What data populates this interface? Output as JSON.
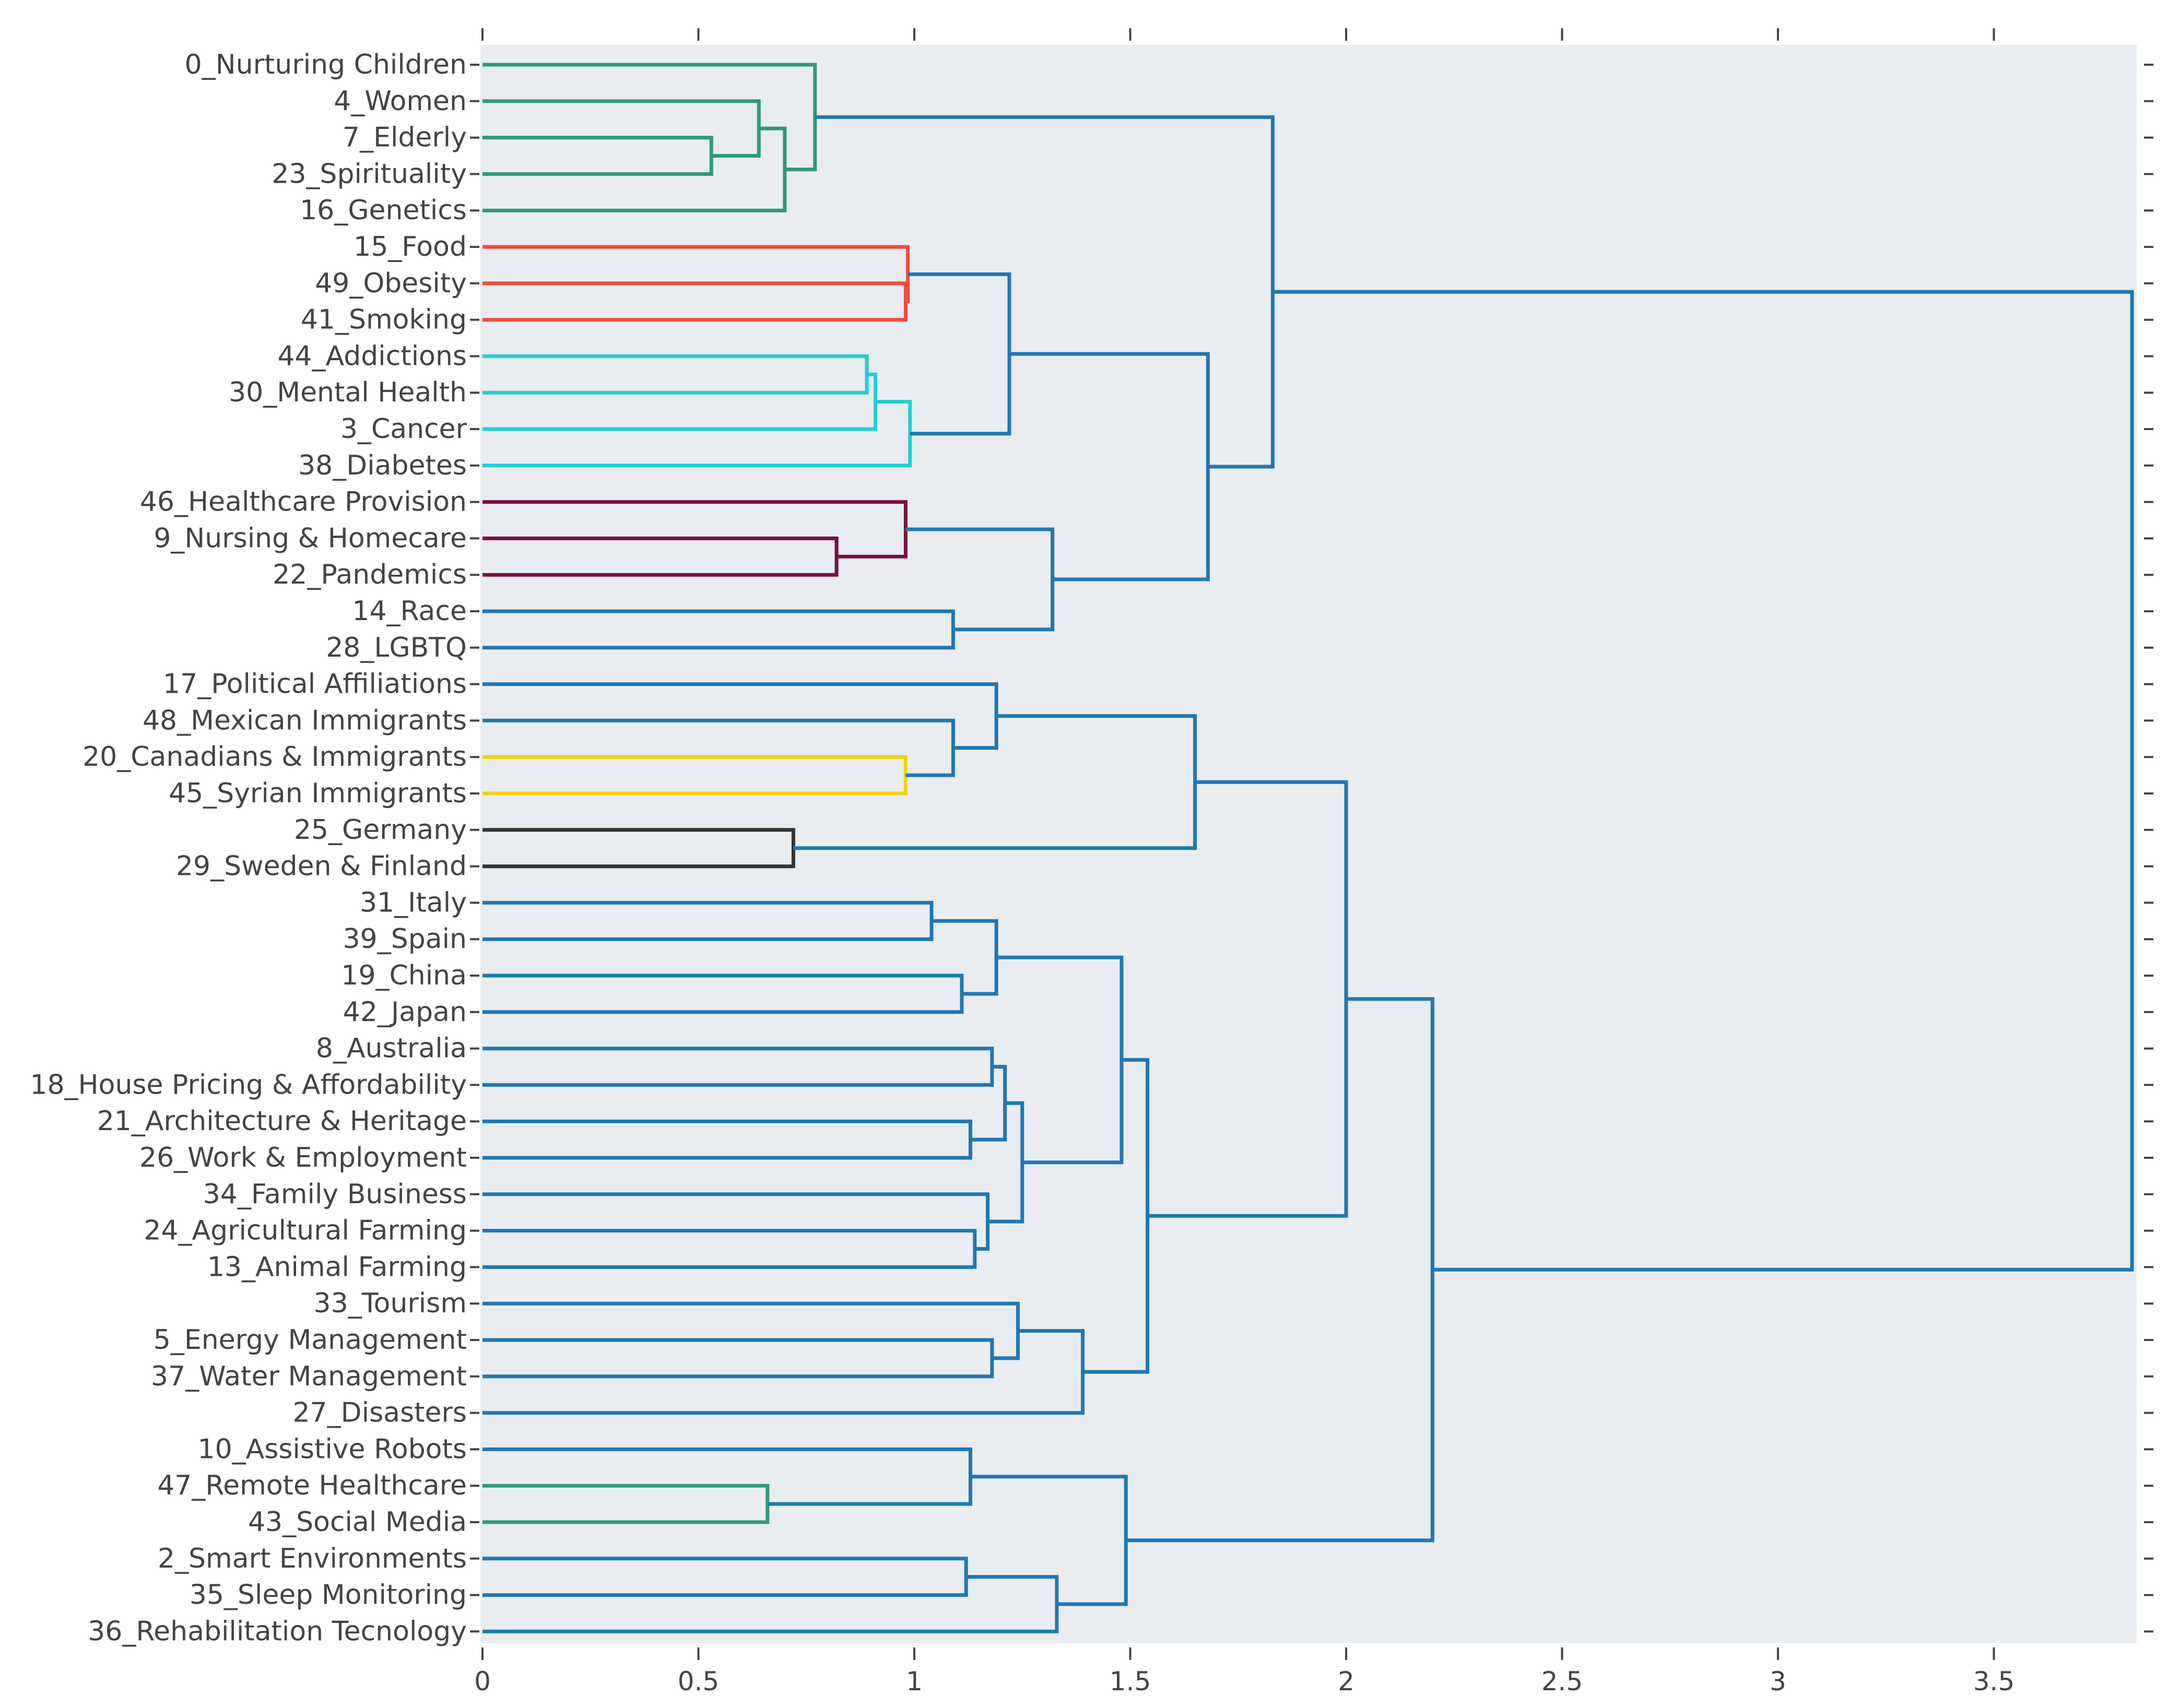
{
  "chart_data": {
    "type": "dendrogram",
    "orientation": "horizontal",
    "title": "",
    "xlabel": "",
    "ylabel": "",
    "xlim": [
      0,
      3.85
    ],
    "x_ticks": [
      0,
      0.5,
      1,
      1.5,
      2,
      2.5,
      3,
      3.5
    ],
    "x_tick_labels": [
      "0",
      "0.5",
      "1",
      "1.5",
      "2",
      "2.5",
      "3",
      "3.5"
    ],
    "plot_background": "#e9edf1",
    "colors": {
      "above_threshold": "#1f77b4",
      "green": "#2e9a78",
      "red": "#f34b3d",
      "cyan": "#21cfd6",
      "maroon": "#7a0f3e",
      "yellow": "#f0d400",
      "dark": "#333333"
    },
    "leaves": [
      "0_Nurturing Children",
      "4_Women",
      "7_Elderly",
      "23_Spirituality",
      "16_Genetics",
      "15_Food",
      "49_Obesity",
      "41_Smoking",
      "44_Addictions",
      "30_Mental Health",
      "3_Cancer",
      "38_Diabetes",
      "46_Healthcare Provision",
      "9_Nursing & Homecare",
      "22_Pandemics",
      "14_Race",
      "28_LGBTQ",
      "17_Political Affiliations",
      "48_Mexican Immigrants",
      "20_Canadians & Immigrants",
      "45_Syrian Immigrants",
      "25_Germany",
      "29_Sweden & Finland",
      "31_Italy",
      "39_Spain",
      "19_China",
      "42_Japan",
      "8_Australia",
      "18_House Pricing & Affordability",
      "21_Architecture & Heritage",
      "26_Work & Employment",
      "34_Family Business",
      "24_Agricultural Farming",
      "13_Animal Farming",
      "33_Tourism",
      "5_Energy Management",
      "37_Water Management",
      "27_Disasters",
      "10_Assistive Robots",
      "47_Remote Healthcare",
      "43_Social Media",
      "2_Smart Environments",
      "35_Sleep Monitoring",
      "36_Rehabilitation Tecnology"
    ],
    "merges": [
      {
        "id": "m1",
        "left": "L2",
        "right": "L3",
        "height": 0.53,
        "color": "green"
      },
      {
        "id": "m2",
        "left": "L1",
        "right": "m1",
        "height": 0.64,
        "color": "green"
      },
      {
        "id": "m3",
        "left": "m2",
        "right": "L4",
        "height": 0.7,
        "color": "green"
      },
      {
        "id": "m4",
        "left": "L0",
        "right": "m3",
        "height": 0.77,
        "color": "green"
      },
      {
        "id": "m5",
        "left": "L6",
        "right": "L7",
        "height": 0.98,
        "color": "red"
      },
      {
        "id": "m6",
        "left": "L5",
        "right": "m5",
        "height": 0.985,
        "color": "red"
      },
      {
        "id": "m7",
        "left": "L8",
        "right": "L9",
        "height": 0.89,
        "color": "cyan"
      },
      {
        "id": "m8",
        "left": "m7",
        "right": "L10",
        "height": 0.91,
        "color": "cyan"
      },
      {
        "id": "m9",
        "left": "m8",
        "right": "L11",
        "height": 0.99,
        "color": "cyan"
      },
      {
        "id": "m10",
        "left": "m6",
        "right": "m9",
        "height": 1.22,
        "color": "above_threshold"
      },
      {
        "id": "m11",
        "left": "L13",
        "right": "L14",
        "height": 0.82,
        "color": "maroon"
      },
      {
        "id": "m12",
        "left": "L12",
        "right": "m11",
        "height": 0.98,
        "color": "maroon"
      },
      {
        "id": "m13",
        "left": "L15",
        "right": "L16",
        "height": 1.09,
        "color": "above_threshold"
      },
      {
        "id": "m14",
        "left": "m12",
        "right": "m13",
        "height": 1.32,
        "color": "above_threshold"
      },
      {
        "id": "m15",
        "left": "m10",
        "right": "m14",
        "height": 1.68,
        "color": "above_threshold"
      },
      {
        "id": "m16",
        "left": "m4",
        "right": "m15",
        "height": 1.83,
        "color": "above_threshold"
      },
      {
        "id": "m17",
        "left": "L19",
        "right": "L20",
        "height": 0.98,
        "color": "yellow"
      },
      {
        "id": "m18",
        "left": "L18",
        "right": "m17",
        "height": 1.09,
        "color": "above_threshold"
      },
      {
        "id": "m19",
        "left": "L17",
        "right": "m18",
        "height": 1.19,
        "color": "above_threshold"
      },
      {
        "id": "m20",
        "left": "L21",
        "right": "L22",
        "height": 0.72,
        "color": "dark"
      },
      {
        "id": "m21",
        "left": "m19",
        "right": "m20",
        "height": 1.65,
        "color": "above_threshold"
      },
      {
        "id": "m22",
        "left": "L23",
        "right": "L24",
        "height": 1.04,
        "color": "above_threshold"
      },
      {
        "id": "m23",
        "left": "L25",
        "right": "L26",
        "height": 1.11,
        "color": "above_threshold"
      },
      {
        "id": "m24",
        "left": "m22",
        "right": "m23",
        "height": 1.19,
        "color": "above_threshold"
      },
      {
        "id": "m25",
        "left": "L27",
        "right": "L28",
        "height": 1.18,
        "color": "above_threshold"
      },
      {
        "id": "m26",
        "left": "L29",
        "right": "L30",
        "height": 1.13,
        "color": "above_threshold"
      },
      {
        "id": "m27",
        "left": "m25",
        "right": "m26",
        "height": 1.21,
        "color": "above_threshold"
      },
      {
        "id": "m28",
        "left": "L32",
        "right": "L33",
        "height": 1.14,
        "color": "above_threshold"
      },
      {
        "id": "m29",
        "left": "L31",
        "right": "m28",
        "height": 1.17,
        "color": "above_threshold"
      },
      {
        "id": "m30",
        "left": "m27",
        "right": "m29",
        "height": 1.25,
        "color": "above_threshold"
      },
      {
        "id": "m31",
        "left": "m24",
        "right": "m30",
        "height": 1.48,
        "color": "above_threshold"
      },
      {
        "id": "m32",
        "left": "L35",
        "right": "L36",
        "height": 1.18,
        "color": "above_threshold"
      },
      {
        "id": "m33",
        "left": "L34",
        "right": "m32",
        "height": 1.24,
        "color": "above_threshold"
      },
      {
        "id": "m34",
        "left": "m33",
        "right": "L37",
        "height": 1.39,
        "color": "above_threshold"
      },
      {
        "id": "m35",
        "left": "m31",
        "right": "m34",
        "height": 1.54,
        "color": "above_threshold"
      },
      {
        "id": "m36",
        "left": "m21",
        "right": "m35",
        "height": 2.0,
        "color": "above_threshold"
      },
      {
        "id": "m37",
        "left": "L39",
        "right": "L40",
        "height": 0.66,
        "color": "green"
      },
      {
        "id": "m38",
        "left": "L38",
        "right": "m37",
        "height": 1.13,
        "color": "above_threshold"
      },
      {
        "id": "m39",
        "left": "L41",
        "right": "L42",
        "height": 1.12,
        "color": "above_threshold"
      },
      {
        "id": "m40",
        "left": "m39",
        "right": "L43",
        "height": 1.33,
        "color": "above_threshold"
      },
      {
        "id": "m41",
        "left": "m38",
        "right": "m40",
        "height": 1.49,
        "color": "above_threshold"
      },
      {
        "id": "m42",
        "left": "m36",
        "right": "m41",
        "height": 2.2,
        "color": "above_threshold"
      },
      {
        "id": "m43",
        "left": "m16",
        "right": "m42",
        "height": 3.82,
        "color": "above_threshold"
      }
    ]
  }
}
